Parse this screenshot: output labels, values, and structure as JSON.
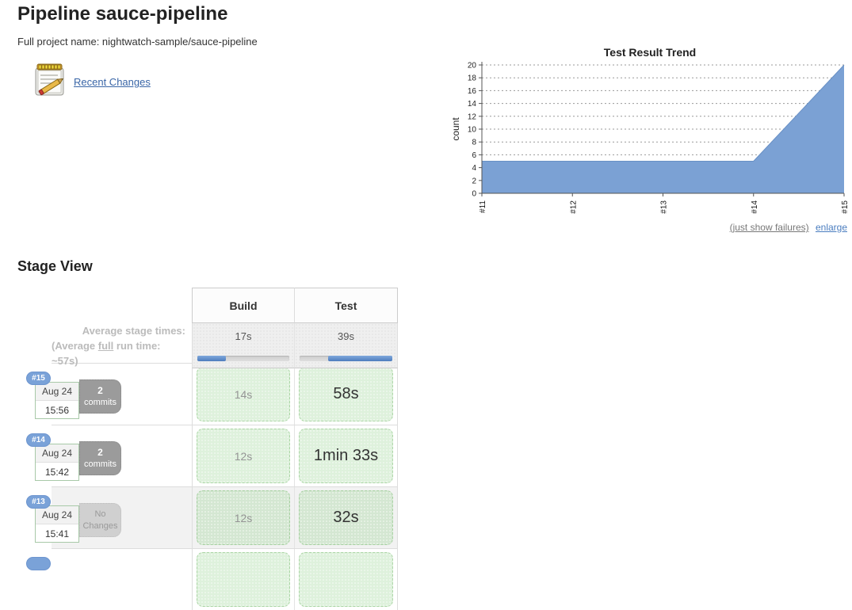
{
  "page": {
    "title": "Pipeline sauce-pipeline",
    "full_project_name": "Full project name: nightwatch-sample/sauce-pipeline",
    "recent_changes_label": "Recent Changes"
  },
  "trend": {
    "links": {
      "just_show_failures": "(just show failures)",
      "enlarge": "enlarge"
    }
  },
  "chart_data": {
    "type": "area",
    "title": "Test Result Trend",
    "ylabel": "count",
    "categories": [
      "#11",
      "#12",
      "#13",
      "#14",
      "#15"
    ],
    "series": [
      {
        "name": "count",
        "values": [
          5,
          5,
          5,
          5,
          20
        ]
      }
    ],
    "ylim": [
      0,
      20
    ],
    "ytick_step": 2,
    "grid": true,
    "legend": "none",
    "fill_color": "#7ba1d4",
    "line_color": "#6890c5"
  },
  "stage_view": {
    "heading": "Stage View",
    "avg_label_line1": "Average stage times:",
    "avg_line2_prefix": "(Average ",
    "avg_line2_underline": "full",
    "avg_line2_suffix": " run time: ~57s)",
    "columns": [
      {
        "name": "Build",
        "avg": "17s",
        "bar": {
          "blue_start_pct": 0,
          "blue_width_pct": 31
        }
      },
      {
        "name": "Test",
        "avg": "39s",
        "bar": {
          "blue_start_pct": 31,
          "blue_width_pct": 69
        }
      }
    ],
    "rows": [
      {
        "id": "#15",
        "date": "Aug 24",
        "time": "15:56",
        "changes_line1": "2",
        "changes_line2": "commits",
        "stages": [
          "14s",
          "58s"
        ]
      },
      {
        "id": "#14",
        "date": "Aug 24",
        "time": "15:42",
        "changes_line1": "2",
        "changes_line2": "commits",
        "stages": [
          "12s",
          "1min 33s"
        ]
      },
      {
        "id": "#13",
        "date": "Aug 24",
        "time": "15:41",
        "changes_line1": "No",
        "changes_line2": "Changes",
        "stages": [
          "12s",
          "32s"
        ]
      },
      {
        "id": "",
        "date": "",
        "time": "",
        "changes_line1": "",
        "changes_line2": "",
        "stages": [
          "",
          ""
        ]
      }
    ]
  }
}
